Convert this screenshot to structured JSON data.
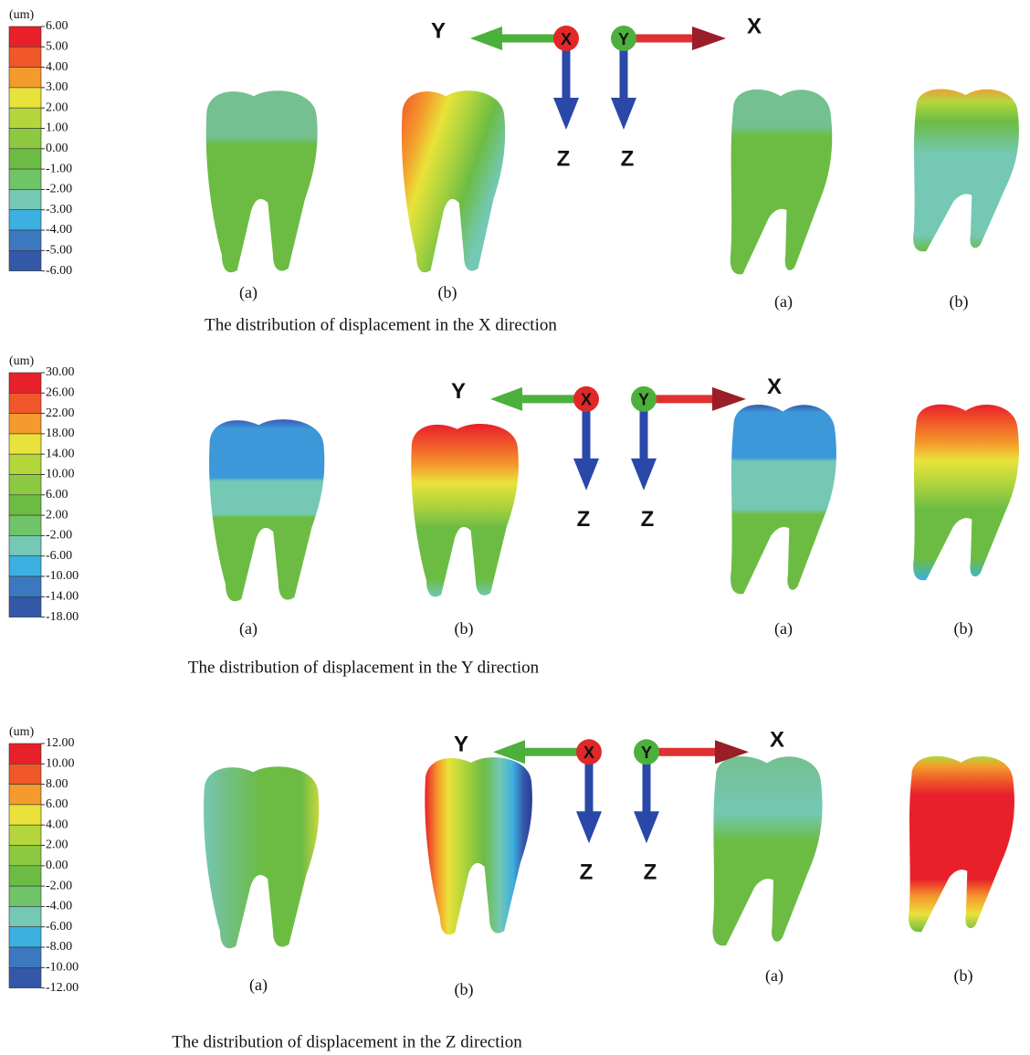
{
  "panels": [
    {
      "legend": {
        "unit": "(um)",
        "labels": [
          "6.00",
          "5.00",
          "4.00",
          "3.00",
          "2.00",
          "1.00",
          "0.00",
          "-1.00",
          "-2.00",
          "-3.00",
          "-4.00",
          "-5.00",
          "-6.00"
        ]
      },
      "axes": {
        "left_axis": "Y",
        "left_origin": "X",
        "right_origin": "Y",
        "right_axis": "X",
        "down_left": "Z",
        "down_right": "Z"
      },
      "subfigure_labels": [
        "(a)",
        "(b)",
        "(a)",
        "(b)"
      ],
      "caption": "The distribution of displacement in the X direction"
    },
    {
      "legend": {
        "unit": "(um)",
        "labels": [
          "30.00",
          "26.00",
          "22.00",
          "18.00",
          "14.00",
          "10.00",
          "6.00",
          "2.00",
          "-2.00",
          "-6.00",
          "-10.00",
          "-14.00",
          "-18.00"
        ]
      },
      "axes": {
        "left_axis": "Y",
        "left_origin": "X",
        "right_origin": "Y",
        "right_axis": "X",
        "down_left": "Z",
        "down_right": "Z"
      },
      "subfigure_labels": [
        "(a)",
        "(b)",
        "(a)",
        "(b)"
      ],
      "caption": "The distribution of displacement in the Y direction"
    },
    {
      "legend": {
        "unit": "(um)",
        "labels": [
          "12.00",
          "10.00",
          "8.00",
          "6.00",
          "4.00",
          "2.00",
          "0.00",
          "-2.00",
          "-4.00",
          "-6.00",
          "-8.00",
          "-10.00",
          "-12.00"
        ]
      },
      "axes": {
        "left_axis": "Y",
        "left_origin": "X",
        "right_origin": "Y",
        "right_axis": "X",
        "down_left": "Z",
        "down_right": "Z"
      },
      "subfigure_labels": [
        "(a)",
        "(b)",
        "(a)",
        "(b)"
      ],
      "caption": "The distribution of displacement in the Z direction"
    }
  ]
}
